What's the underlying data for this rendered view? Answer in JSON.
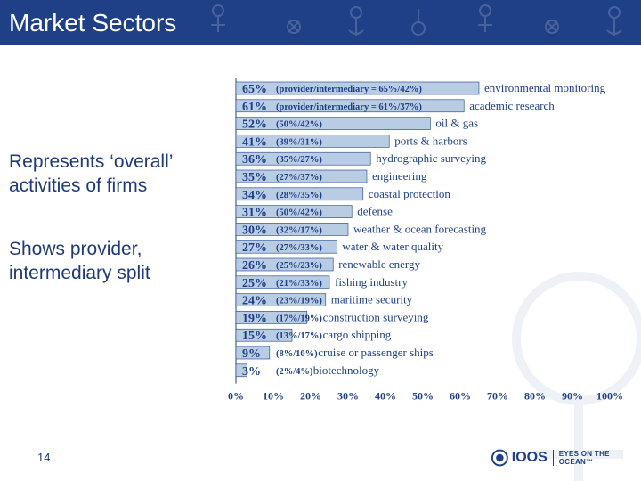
{
  "slide": {
    "title": "Market Sectors",
    "bullets": [
      [
        "Represents ‘overall’",
        "activities of firms"
      ],
      [
        "Shows provider,",
        "intermediary split"
      ]
    ],
    "page_number": "14"
  },
  "logo": {
    "name": "IOOS",
    "tagline": "EYES ON THE OCEAN™"
  },
  "colors": {
    "header": "#1f3f86",
    "bar_fill": "#b8cce4",
    "bar_stroke": "#1f3f86",
    "text": "#1f3f86"
  },
  "chart_data": {
    "type": "bar",
    "orientation": "horizontal",
    "xlim": [
      0,
      100
    ],
    "x_ticks": [
      "0%",
      "10%",
      "20%",
      "30%",
      "40%",
      "50%",
      "60%",
      "70%",
      "80%",
      "90%",
      "100%"
    ],
    "categories": [
      "environmental monitoring",
      "academic research",
      "oil & gas",
      "ports & harbors",
      "hydrographic surveying",
      "engineering",
      "coastal protection",
      "defense",
      "weather & ocean forecasting",
      "water & water quality",
      "renewable energy",
      "fishing industry",
      "maritime security",
      "construction surveying",
      "cargo shipping",
      "cruise or passenger ships",
      "biotechnology"
    ],
    "values": [
      65,
      61,
      52,
      41,
      36,
      35,
      34,
      31,
      30,
      27,
      26,
      25,
      24,
      19,
      15,
      9,
      3
    ],
    "value_labels": [
      "65%",
      "61%",
      "52%",
      "41%",
      "36%",
      "35%",
      "34%",
      "31%",
      "30%",
      "27%",
      "26%",
      "25%",
      "24%",
      "19%",
      "15%",
      "9%",
      "3%"
    ],
    "split_labels": [
      "(provider/intermediary = 65%/42%)",
      "(provider/intermediary = 61%/37%)",
      "(50%/42%)",
      "(39%/31%)",
      "(35%/27%)",
      "(27%/37%)",
      "(28%/35%)",
      "(50%/42%)",
      "(32%/17%)",
      "(27%/33%)",
      "(25%/23%)",
      "(21%/33%)",
      "(23%/19%)",
      "(17%/19%)",
      "(13%/17%)",
      "(8%/10%)",
      "(2%/4%)"
    ],
    "title": "",
    "xlabel": "",
    "ylabel": "",
    "grid": false
  }
}
